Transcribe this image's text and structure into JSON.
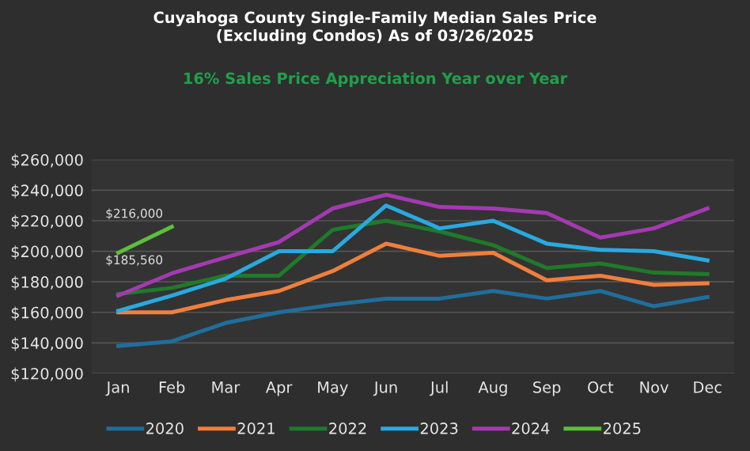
{
  "chart_data": {
    "type": "line",
    "title": "Cuyahoga County Single-Family Median Sales Price\n(Excluding Condos) As of 03/26/2025",
    "subtitle": "16% Sales Price Appreciation Year over Year",
    "categories": [
      "Jan",
      "Feb",
      "Mar",
      "Apr",
      "May",
      "Jun",
      "Jul",
      "Aug",
      "Sep",
      "Oct",
      "Nov",
      "Dec"
    ],
    "series": [
      {
        "name": "2020",
        "color": "#1f6e9c",
        "values": [
          138000,
          141000,
          153000,
          160000,
          165000,
          169000,
          169000,
          174000,
          169000,
          174000,
          164000,
          170000
        ]
      },
      {
        "name": "2021",
        "color": "#f07f3c",
        "values": [
          160000,
          160000,
          168000,
          174000,
          187000,
          205000,
          197000,
          199000,
          181000,
          184000,
          178000,
          179000
        ]
      },
      {
        "name": "2022",
        "color": "#1f7a2a",
        "values": [
          172000,
          176000,
          184000,
          184000,
          214000,
          220000,
          213000,
          204000,
          189000,
          192000,
          186000,
          185000
        ]
      },
      {
        "name": "2023",
        "color": "#29a9e0",
        "values": [
          161000,
          171000,
          182000,
          200000,
          200000,
          230000,
          215000,
          220000,
          205000,
          201000,
          200000,
          194000
        ]
      },
      {
        "name": "2024",
        "color": "#a33ab0",
        "values": [
          171000,
          185560,
          196000,
          206000,
          228000,
          237000,
          229000,
          228000,
          225000,
          209000,
          215000,
          228000
        ],
        "value_labels": [
          null,
          "$185,560",
          null,
          null,
          null,
          null,
          null,
          null,
          null,
          null,
          null,
          null
        ]
      },
      {
        "name": "2025",
        "color": "#5cbf3a",
        "values": [
          199000,
          216000,
          null,
          null,
          null,
          null,
          null,
          null,
          null,
          null,
          null,
          null
        ],
        "value_labels": [
          null,
          "$216,000",
          null,
          null,
          null,
          null,
          null,
          null,
          null,
          null,
          null,
          null
        ]
      }
    ],
    "ylim": [
      120000,
      260000
    ],
    "yticks": [
      {
        "value": 120000,
        "label": "$120,000"
      },
      {
        "value": 140000,
        "label": "$140,000"
      },
      {
        "value": 160000,
        "label": "$160,000"
      },
      {
        "value": 180000,
        "label": "$180,000"
      },
      {
        "value": 200000,
        "label": "$200,000"
      },
      {
        "value": 220000,
        "label": "$220,000"
      },
      {
        "value": 240000,
        "label": "$240,000"
      },
      {
        "value": 260000,
        "label": "$260,000"
      }
    ],
    "grid": "y",
    "legend": "bottom",
    "marker": "none",
    "line_style": "solid"
  }
}
